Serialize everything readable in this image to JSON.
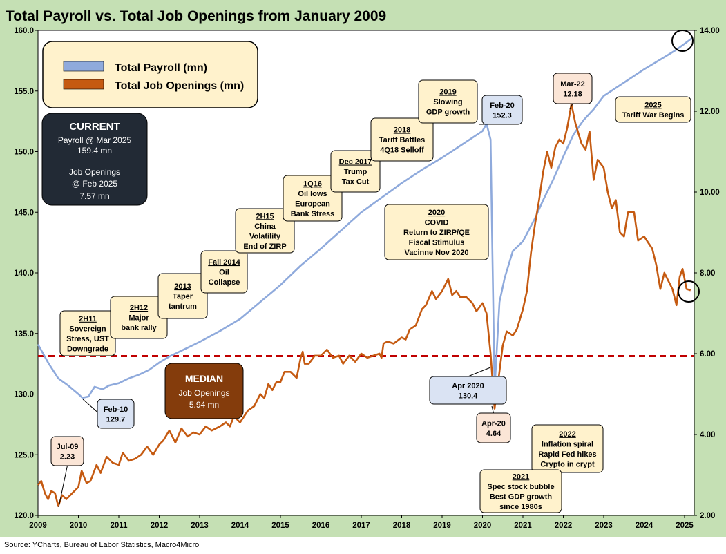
{
  "title": "Total Payroll vs. Total Job Openings from January 2009",
  "source": "Source: YCharts, Bureau of Labor Statistics, Macro4Micro",
  "colors": {
    "frame": "#c5e0b4",
    "payroll": "#8faadc",
    "openings": "#c55a11",
    "median": "#c00000",
    "note_fill": "#fff2cc",
    "note_blue": "#dae3f3",
    "note_pink": "#fbe5d6",
    "dark_box": "#222a35",
    "median_box": "#843c0c"
  },
  "legend": {
    "payroll": "Total Payroll (mn)",
    "openings": "Total Job Openings (mn)"
  },
  "current_box": {
    "heading": "CURRENT",
    "lines": [
      "Payroll @ Mar 2025",
      "159.4 mn",
      "",
      "Job Openings",
      "@  Feb 2025",
      "7.57 mn"
    ]
  },
  "median_box": {
    "heading": "MEDIAN",
    "lines": [
      "Job Openings",
      "5.94 mn"
    ]
  },
  "annotations": [
    {
      "id": "2h11",
      "lines": [
        "2H11",
        "Sovereign",
        "Stress, UST",
        "Downgrade"
      ]
    },
    {
      "id": "2h12",
      "lines": [
        "2H12",
        "Major",
        "bank rally"
      ]
    },
    {
      "id": "2013",
      "lines": [
        "2013",
        "Taper",
        "tantrum"
      ]
    },
    {
      "id": "fall2014",
      "lines": [
        "Fall 2014",
        "Oil",
        "Collapse"
      ]
    },
    {
      "id": "2h15",
      "lines": [
        "2H15",
        "China",
        "Volatility",
        "End of ZIRP"
      ]
    },
    {
      "id": "1q16",
      "lines": [
        "1Q16",
        "Oil lows",
        "European",
        "Bank Stress"
      ]
    },
    {
      "id": "dec2017",
      "lines": [
        "Dec 2017",
        "Trump",
        "Tax Cut"
      ]
    },
    {
      "id": "2018",
      "lines": [
        "2018",
        "Tariff Battles",
        "4Q18 Selloff"
      ]
    },
    {
      "id": "2019",
      "lines": [
        "2019",
        "Slowing",
        "GDP growth"
      ]
    },
    {
      "id": "2020",
      "lines": [
        "2020",
        "COVID",
        "Return to ZIRP/QE",
        "Fiscal Stimulus",
        "Vacinne  Nov 2020"
      ]
    },
    {
      "id": "2025",
      "lines": [
        "2025",
        "Tariff War Begins"
      ]
    },
    {
      "id": "2022",
      "lines": [
        "2022",
        "Inflation spiral",
        "Rapid Fed hikes",
        "Crypto in crypt"
      ]
    },
    {
      "id": "2021",
      "lines": [
        "2021",
        "Spec stock bubble",
        "Best GDP growth",
        "since 1980s"
      ]
    }
  ],
  "callouts": [
    {
      "id": "feb10",
      "lines": [
        "Feb-10",
        "129.7"
      ]
    },
    {
      "id": "feb20",
      "lines": [
        "Feb-20",
        "152.3"
      ]
    },
    {
      "id": "apr2020",
      "lines": [
        "Apr 2020",
        "130.4"
      ]
    },
    {
      "id": "jul09",
      "lines": [
        "Jul-09",
        "2.23"
      ]
    },
    {
      "id": "mar22",
      "lines": [
        "Mar-22",
        "12.18"
      ]
    },
    {
      "id": "apr20",
      "lines": [
        "Apr-20",
        "4.64"
      ]
    }
  ],
  "chart_data": {
    "type": "line",
    "title": "Total Payroll vs. Total Job Openings from January 2009",
    "x_ticks": [
      2009,
      2010,
      2011,
      2012,
      2013,
      2014,
      2015,
      2016,
      2017,
      2018,
      2019,
      2020,
      2021,
      2022,
      2023,
      2024,
      2025
    ],
    "xlim": [
      2009.0,
      2025.25
    ],
    "y_left": {
      "lim": [
        120,
        160
      ],
      "ticks": [
        "120.0",
        "125.0",
        "130.0",
        "135.0",
        "140.0",
        "145.0",
        "150.0",
        "155.0",
        "160.0"
      ]
    },
    "y_right": {
      "lim": [
        2,
        14
      ],
      "ticks": [
        "2.00",
        "4.00",
        "6.00",
        "8.00",
        "10.00",
        "12.00",
        "14.00"
      ]
    },
    "median_openings": 5.94,
    "series": [
      {
        "name": "Total Payroll (mn)",
        "axis": "left",
        "points": [
          [
            2009.0,
            134.1
          ],
          [
            2009.25,
            132.6
          ],
          [
            2009.5,
            131.3
          ],
          [
            2009.75,
            130.7
          ],
          [
            2010.0,
            130.0
          ],
          [
            2010.1,
            129.7
          ],
          [
            2010.25,
            129.8
          ],
          [
            2010.4,
            130.6
          ],
          [
            2010.6,
            130.4
          ],
          [
            2010.75,
            130.7
          ],
          [
            2011.0,
            130.9
          ],
          [
            2011.25,
            131.3
          ],
          [
            2011.5,
            131.6
          ],
          [
            2011.75,
            132.0
          ],
          [
            2012.0,
            132.6
          ],
          [
            2012.25,
            133.1
          ],
          [
            2012.5,
            133.5
          ],
          [
            2012.75,
            133.9
          ],
          [
            2013.0,
            134.3
          ],
          [
            2013.5,
            135.2
          ],
          [
            2014.0,
            136.2
          ],
          [
            2014.5,
            137.6
          ],
          [
            2015.0,
            139.0
          ],
          [
            2015.5,
            140.6
          ],
          [
            2016.0,
            142.0
          ],
          [
            2016.5,
            143.5
          ],
          [
            2017.0,
            145.0
          ],
          [
            2017.5,
            146.2
          ],
          [
            2018.0,
            147.4
          ],
          [
            2018.5,
            148.5
          ],
          [
            2019.0,
            149.5
          ],
          [
            2019.5,
            150.6
          ],
          [
            2020.0,
            151.7
          ],
          [
            2020.1,
            152.3
          ],
          [
            2020.2,
            151.0
          ],
          [
            2020.3,
            130.4
          ],
          [
            2020.42,
            137.6
          ],
          [
            2020.55,
            139.6
          ],
          [
            2020.75,
            141.8
          ],
          [
            2021.0,
            142.6
          ],
          [
            2021.3,
            144.5
          ],
          [
            2021.5,
            146.0
          ],
          [
            2021.75,
            147.7
          ],
          [
            2022.0,
            149.6
          ],
          [
            2022.25,
            151.4
          ],
          [
            2022.5,
            152.6
          ],
          [
            2022.75,
            153.5
          ],
          [
            2023.0,
            154.6
          ],
          [
            2023.5,
            155.7
          ],
          [
            2024.0,
            156.8
          ],
          [
            2024.5,
            157.8
          ],
          [
            2024.75,
            158.3
          ],
          [
            2025.0,
            158.9
          ],
          [
            2025.2,
            159.4
          ]
        ]
      },
      {
        "name": "Total Job Openings (mn)",
        "axis": "right",
        "points": [
          [
            2009.0,
            2.75
          ],
          [
            2009.08,
            2.85
          ],
          [
            2009.17,
            2.55
          ],
          [
            2009.25,
            2.4
          ],
          [
            2009.33,
            2.6
          ],
          [
            2009.42,
            2.55
          ],
          [
            2009.5,
            2.23
          ],
          [
            2009.6,
            2.5
          ],
          [
            2009.7,
            2.4
          ],
          [
            2009.85,
            2.55
          ],
          [
            2010.0,
            2.7
          ],
          [
            2010.08,
            3.1
          ],
          [
            2010.2,
            2.8
          ],
          [
            2010.3,
            2.85
          ],
          [
            2010.45,
            3.25
          ],
          [
            2010.55,
            3.05
          ],
          [
            2010.7,
            3.45
          ],
          [
            2010.85,
            3.3
          ],
          [
            2011.0,
            3.25
          ],
          [
            2011.1,
            3.55
          ],
          [
            2011.25,
            3.35
          ],
          [
            2011.4,
            3.4
          ],
          [
            2011.55,
            3.5
          ],
          [
            2011.7,
            3.7
          ],
          [
            2011.85,
            3.5
          ],
          [
            2012.0,
            3.75
          ],
          [
            2012.1,
            3.85
          ],
          [
            2012.25,
            4.1
          ],
          [
            2012.4,
            3.8
          ],
          [
            2012.55,
            4.15
          ],
          [
            2012.7,
            3.95
          ],
          [
            2012.85,
            4.05
          ],
          [
            2013.0,
            4.0
          ],
          [
            2013.15,
            4.2
          ],
          [
            2013.3,
            4.1
          ],
          [
            2013.5,
            4.2
          ],
          [
            2013.65,
            4.3
          ],
          [
            2013.75,
            4.2
          ],
          [
            2013.85,
            4.45
          ],
          [
            2014.0,
            4.3
          ],
          [
            2014.2,
            4.6
          ],
          [
            2014.35,
            4.7
          ],
          [
            2014.5,
            5.0
          ],
          [
            2014.6,
            4.9
          ],
          [
            2014.7,
            5.25
          ],
          [
            2014.8,
            5.1
          ],
          [
            2014.9,
            5.3
          ],
          [
            2015.0,
            5.3
          ],
          [
            2015.1,
            5.55
          ],
          [
            2015.25,
            5.55
          ],
          [
            2015.4,
            5.4
          ],
          [
            2015.5,
            5.9
          ],
          [
            2015.55,
            6.05
          ],
          [
            2015.6,
            5.75
          ],
          [
            2015.7,
            5.75
          ],
          [
            2015.85,
            5.95
          ],
          [
            2016.0,
            5.95
          ],
          [
            2016.15,
            6.1
          ],
          [
            2016.3,
            5.9
          ],
          [
            2016.45,
            5.95
          ],
          [
            2016.55,
            5.75
          ],
          [
            2016.7,
            5.95
          ],
          [
            2016.85,
            5.8
          ],
          [
            2017.0,
            6.0
          ],
          [
            2017.15,
            5.9
          ],
          [
            2017.3,
            5.95
          ],
          [
            2017.45,
            6.0
          ],
          [
            2017.5,
            5.9
          ],
          [
            2017.55,
            6.25
          ],
          [
            2017.65,
            6.3
          ],
          [
            2017.8,
            6.25
          ],
          [
            2018.0,
            6.4
          ],
          [
            2018.1,
            6.35
          ],
          [
            2018.2,
            6.6
          ],
          [
            2018.35,
            6.7
          ],
          [
            2018.5,
            7.1
          ],
          [
            2018.6,
            7.2
          ],
          [
            2018.75,
            7.55
          ],
          [
            2018.85,
            7.35
          ],
          [
            2019.0,
            7.55
          ],
          [
            2019.15,
            7.85
          ],
          [
            2019.25,
            7.45
          ],
          [
            2019.35,
            7.55
          ],
          [
            2019.45,
            7.4
          ],
          [
            2019.6,
            7.4
          ],
          [
            2019.75,
            7.25
          ],
          [
            2019.85,
            7.05
          ],
          [
            2020.0,
            7.25
          ],
          [
            2020.1,
            7.0
          ],
          [
            2020.2,
            6.0
          ],
          [
            2020.3,
            4.64
          ],
          [
            2020.4,
            5.4
          ],
          [
            2020.5,
            6.2
          ],
          [
            2020.6,
            6.55
          ],
          [
            2020.75,
            6.45
          ],
          [
            2020.85,
            6.6
          ],
          [
            2021.0,
            7.1
          ],
          [
            2021.1,
            7.55
          ],
          [
            2021.2,
            8.5
          ],
          [
            2021.3,
            9.2
          ],
          [
            2021.4,
            9.8
          ],
          [
            2021.5,
            10.5
          ],
          [
            2021.6,
            11.0
          ],
          [
            2021.7,
            10.6
          ],
          [
            2021.8,
            11.1
          ],
          [
            2021.9,
            11.3
          ],
          [
            2022.0,
            11.2
          ],
          [
            2022.1,
            11.6
          ],
          [
            2022.2,
            12.18
          ],
          [
            2022.3,
            11.7
          ],
          [
            2022.45,
            11.2
          ],
          [
            2022.55,
            11.05
          ],
          [
            2022.65,
            11.5
          ],
          [
            2022.75,
            10.3
          ],
          [
            2022.85,
            10.8
          ],
          [
            2023.0,
            10.6
          ],
          [
            2023.1,
            10.0
          ],
          [
            2023.2,
            9.6
          ],
          [
            2023.3,
            9.8
          ],
          [
            2023.4,
            9.0
          ],
          [
            2023.5,
            8.9
          ],
          [
            2023.6,
            9.5
          ],
          [
            2023.75,
            9.5
          ],
          [
            2023.85,
            8.8
          ],
          [
            2024.0,
            8.9
          ],
          [
            2024.1,
            8.75
          ],
          [
            2024.2,
            8.6
          ],
          [
            2024.3,
            8.2
          ],
          [
            2024.4,
            7.6
          ],
          [
            2024.5,
            8.0
          ],
          [
            2024.6,
            7.8
          ],
          [
            2024.7,
            7.6
          ],
          [
            2024.8,
            7.2
          ],
          [
            2024.88,
            7.9
          ],
          [
            2024.95,
            8.1
          ],
          [
            2025.05,
            7.6
          ],
          [
            2025.15,
            7.57
          ]
        ]
      }
    ]
  }
}
